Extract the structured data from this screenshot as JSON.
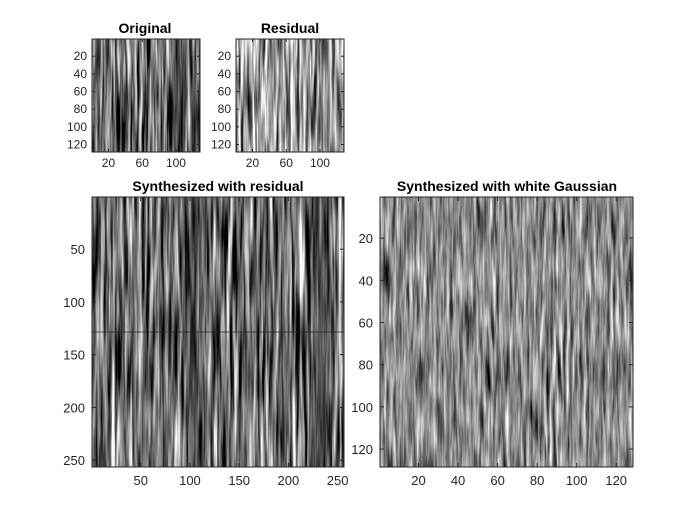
{
  "figure": {
    "panels": [
      {
        "id": "original",
        "title": "Original",
        "image_size": [
          128,
          128
        ],
        "x_ticks": [
          20,
          60,
          100
        ],
        "y_ticks": [
          20,
          40,
          60,
          80,
          100,
          120
        ],
        "x_tick_labels": [
          "20",
          "60",
          "100"
        ],
        "y_tick_labels": [
          "20",
          "40",
          "60",
          "80",
          "100",
          "120"
        ],
        "texture": "dark vertical bark-like stripes",
        "colormap": "gray"
      },
      {
        "id": "residual",
        "title": "Residual",
        "image_size": [
          128,
          128
        ],
        "x_ticks": [
          20,
          60,
          100
        ],
        "y_ticks": [
          20,
          40,
          60,
          80,
          100,
          120
        ],
        "x_tick_labels": [
          "20",
          "60",
          "100"
        ],
        "y_tick_labels": [
          "20",
          "40",
          "60",
          "80",
          "100",
          "120"
        ],
        "texture": "lighter vertical stripes",
        "colormap": "gray"
      },
      {
        "id": "synth-residual",
        "title": "Synthesized with residual",
        "image_size": [
          256,
          256
        ],
        "x_ticks": [
          50,
          100,
          150,
          200,
          250
        ],
        "y_ticks": [
          50,
          100,
          150,
          200,
          250
        ],
        "x_tick_labels": [
          "50",
          "100",
          "150",
          "200",
          "250"
        ],
        "y_tick_labels": [
          "50",
          "100",
          "150",
          "200",
          "250"
        ],
        "texture": "2x2 tiled dark vertical stripes",
        "colormap": "gray"
      },
      {
        "id": "synth-gauss",
        "title": "Synthesized with white Gaussian",
        "image_size": [
          128,
          128
        ],
        "x_ticks": [
          20,
          40,
          60,
          80,
          100,
          120
        ],
        "y_ticks": [
          20,
          40,
          60,
          80,
          100,
          120
        ],
        "x_tick_labels": [
          "20",
          "40",
          "60",
          "80",
          "100",
          "120"
        ],
        "y_tick_labels": [
          "20",
          "40",
          "60",
          "80",
          "100",
          "120"
        ],
        "texture": "mid-gray fine vertical stripes",
        "colormap": "gray"
      }
    ]
  }
}
